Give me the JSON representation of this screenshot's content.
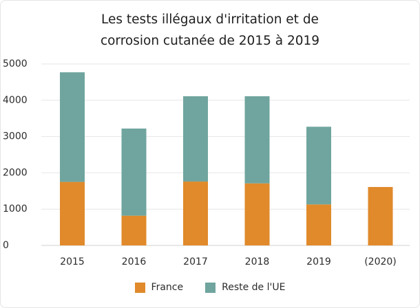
{
  "chart_data": {
    "type": "bar",
    "stacked": true,
    "title_lines": [
      "Les tests illégaux d'irritation et de",
      "corrosion cutanée de 2015 à 2019"
    ],
    "xlabel": "",
    "ylabel": "",
    "categories": [
      "2015",
      "2016",
      "2017",
      "2018",
      "2019",
      "(2020)"
    ],
    "ylim": [
      0,
      5000
    ],
    "yticks": [
      "0",
      "1000",
      "2000",
      "3000",
      "4000",
      "5000"
    ],
    "grid": true,
    "legend_position": "bottom",
    "series": [
      {
        "name": "France",
        "color": "#e08a2b",
        "values": [
          1750,
          820,
          1760,
          1710,
          1130,
          1610
        ]
      },
      {
        "name": "Reste de l'UE",
        "color": "#6fa59e",
        "values": [
          3020,
          2400,
          2350,
          2400,
          2140,
          0
        ]
      }
    ]
  }
}
